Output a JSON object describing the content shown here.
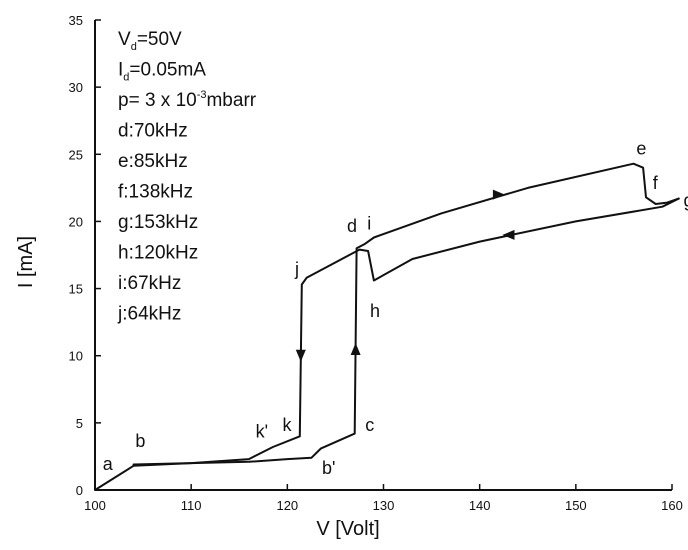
{
  "chart_data": {
    "type": "line",
    "title": "",
    "xlabel": "V [Volt]",
    "ylabel": "I [mA]",
    "xlim": [
      100,
      160
    ],
    "ylim": [
      0,
      35
    ],
    "x_ticks": [
      100,
      110,
      120,
      130,
      140,
      150,
      160
    ],
    "y_ticks": [
      0,
      5,
      10,
      15,
      20,
      25,
      30,
      35
    ],
    "grid": false,
    "legend": "top-left",
    "legend_text": [
      {
        "prefix": "V",
        "sub": "d",
        "suffix": "=50V"
      },
      {
        "prefix": "I",
        "sub": "d",
        "suffix": "=0.05mA"
      },
      {
        "prefix": "p= 3 x 10",
        "sup": "-3",
        "suffix": "mbarr"
      },
      {
        "prefix": "d:70kHz"
      },
      {
        "prefix": "e:85kHz"
      },
      {
        "prefix": "f:138kHz"
      },
      {
        "prefix": "g:153kHz"
      },
      {
        "prefix": "h:120kHz"
      },
      {
        "prefix": "i:67kHz"
      },
      {
        "prefix": "j:64kHz"
      }
    ],
    "series": [
      {
        "values": [
          [
            100,
            0
          ],
          [
            104,
            1.8
          ],
          [
            110,
            2.0
          ],
          [
            116,
            2.1
          ],
          [
            120,
            2.3
          ],
          [
            122.5,
            2.4
          ],
          [
            123.5,
            3.1
          ],
          [
            127,
            4.2
          ],
          [
            127.2,
            18.0
          ],
          [
            128,
            18.3
          ],
          [
            129,
            18.8
          ],
          [
            136,
            20.6
          ],
          [
            145,
            22.5
          ],
          [
            156,
            24.3
          ],
          [
            157,
            24.0
          ],
          [
            157.3,
            21.8
          ],
          [
            158.3,
            21.3
          ],
          [
            159.5,
            21.4
          ],
          [
            160.7,
            21.7
          ]
        ]
      },
      {
        "values": [
          [
            160.7,
            21.7
          ],
          [
            159,
            21.1
          ],
          [
            150,
            20.0
          ],
          [
            140,
            18.5
          ],
          [
            133,
            17.2
          ],
          [
            129,
            15.6
          ],
          [
            128.4,
            17.8
          ],
          [
            127.5,
            17.9
          ],
          [
            122,
            15.8
          ],
          [
            121.5,
            15.3
          ],
          [
            121.3,
            4.0
          ],
          [
            118.5,
            3.2
          ],
          [
            116,
            2.3
          ],
          [
            110,
            2.0
          ],
          [
            104,
            1.9
          ]
        ]
      }
    ],
    "arrows": [
      {
        "x": 142,
        "y": 22.0,
        "direction": "right"
      },
      {
        "x": 143,
        "y": 19.0,
        "direction": "left"
      },
      {
        "x": 121.4,
        "y": 10.0,
        "direction": "down"
      },
      {
        "x": 127.1,
        "y": 10.5,
        "direction": "up"
      }
    ],
    "point_labels": [
      {
        "text": "a",
        "x": 100.8,
        "y": 1.5
      },
      {
        "text": "b",
        "x": 104.2,
        "y": 3.2
      },
      {
        "text": "b'",
        "x": 123.6,
        "y": 1.2
      },
      {
        "text": "c",
        "x": 128.1,
        "y": 4.4
      },
      {
        "text": "k'",
        "x": 116.7,
        "y": 3.9
      },
      {
        "text": "k",
        "x": 119.5,
        "y": 4.4
      },
      {
        "text": "j",
        "x": 120.8,
        "y": 16.0
      },
      {
        "text": "d",
        "x": 126.2,
        "y": 19.2
      },
      {
        "text": "i",
        "x": 128.3,
        "y": 19.4
      },
      {
        "text": "h",
        "x": 128.6,
        "y": 12.9
      },
      {
        "text": "e",
        "x": 156.3,
        "y": 25.0
      },
      {
        "text": "f",
        "x": 158.0,
        "y": 22.4
      },
      {
        "text": "g",
        "x": 161.2,
        "y": 21.1
      }
    ]
  }
}
